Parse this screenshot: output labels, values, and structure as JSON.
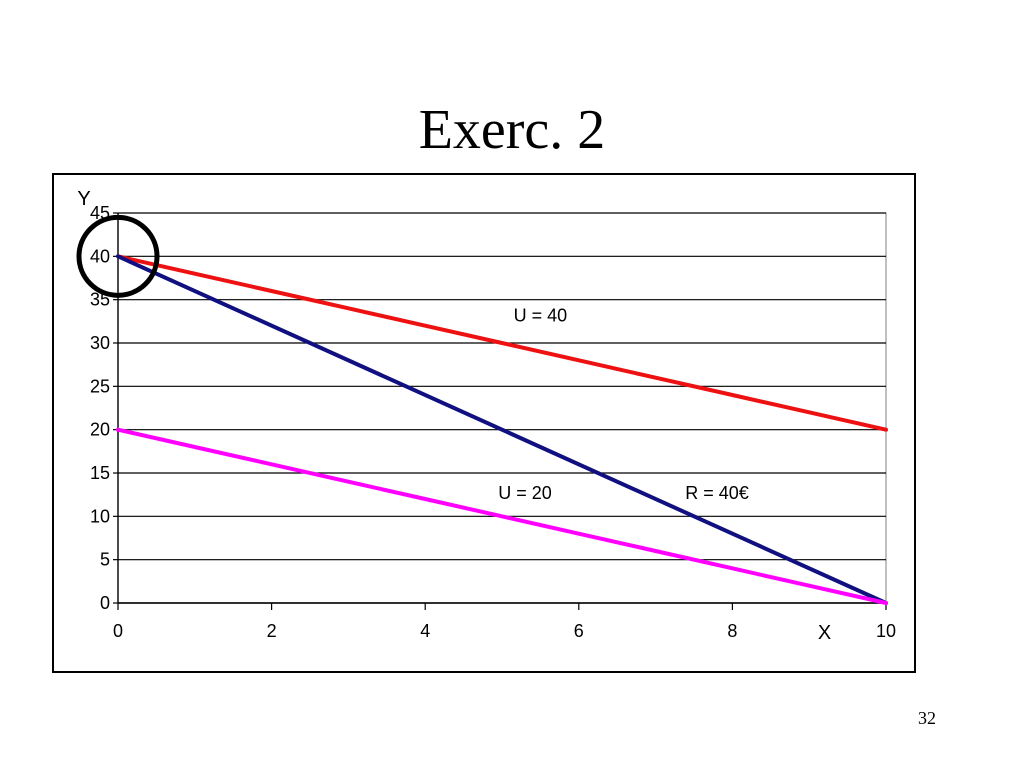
{
  "slide": {
    "title": "Exerc. 2",
    "page_number": "32"
  },
  "chart_data": {
    "type": "line",
    "xlabel": "X",
    "ylabel": "Y",
    "xlim": [
      0,
      10
    ],
    "ylim": [
      0,
      45
    ],
    "x_ticks": [
      "0",
      "2",
      "4",
      "6",
      "8",
      "10"
    ],
    "y_ticks": [
      "0",
      "5",
      "10",
      "15",
      "20",
      "25",
      "30",
      "35",
      "40",
      "45"
    ],
    "grid": "horizontal",
    "series": [
      {
        "name": "U = 40",
        "color": "#ee1111",
        "points": [
          [
            0,
            40
          ],
          [
            1,
            38
          ],
          [
            2,
            36
          ],
          [
            3,
            34
          ],
          [
            4,
            32
          ],
          [
            5,
            30
          ],
          [
            6,
            28
          ],
          [
            7,
            26
          ],
          [
            8,
            24
          ],
          [
            9,
            22
          ],
          [
            10,
            20
          ]
        ],
        "label_at": [
          5.5,
          32.5
        ]
      },
      {
        "name": "R = 40€",
        "color": "#101080",
        "points": [
          [
            0,
            40
          ],
          [
            10,
            0
          ]
        ],
        "label_at": [
          7.8,
          12
        ]
      },
      {
        "name": "U = 20",
        "color": "#ff00ff",
        "points": [
          [
            0,
            20
          ],
          [
            1,
            18
          ],
          [
            2,
            16
          ],
          [
            3,
            14
          ],
          [
            4,
            12
          ],
          [
            5,
            10
          ],
          [
            6,
            8
          ],
          [
            7,
            6
          ],
          [
            8,
            4
          ],
          [
            9,
            2
          ],
          [
            10,
            0
          ]
        ],
        "label_at": [
          5.3,
          12
        ]
      }
    ],
    "annotations": [
      {
        "type": "circle",
        "x": 0,
        "y": 40,
        "color": "#000000"
      }
    ]
  }
}
